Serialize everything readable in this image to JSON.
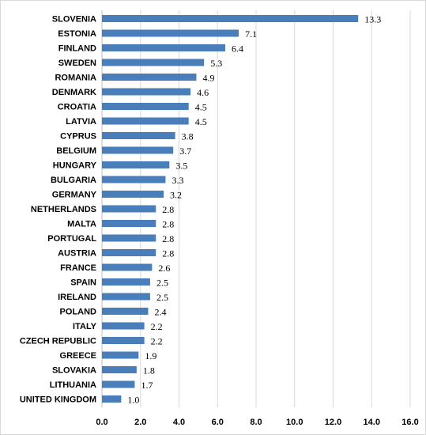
{
  "chart_data": {
    "type": "bar",
    "orientation": "horizontal",
    "title": "",
    "xlabel": "",
    "ylabel": "",
    "xlim": [
      0,
      16
    ],
    "x_ticks": [
      "0.0",
      "2.0",
      "4.0",
      "6.0",
      "8.0",
      "10.0",
      "12.0",
      "14.0",
      "16.0"
    ],
    "grid": true,
    "bar_color": "#4a7ebb",
    "categories": [
      "SLOVENIA",
      "ESTONIA",
      "FINLAND",
      "SWEDEN",
      "ROMANIA",
      "DENMARK",
      "CROATIA",
      "LATVIA",
      "CYPRUS",
      "BELGIUM",
      "HUNGARY",
      "BULGARIA",
      "GERMANY",
      "NETHERLANDS",
      "MALTA",
      "PORTUGAL",
      "AUSTRIA",
      "FRANCE",
      "SPAIN",
      "IRELAND",
      "POLAND",
      "ITALY",
      "CZECH REPUBLIC",
      "GREECE",
      "SLOVAKIA",
      "LITHUANIA",
      "UNITED KINGDOM"
    ],
    "values": [
      13.3,
      7.1,
      6.4,
      5.3,
      4.9,
      4.6,
      4.5,
      4.5,
      3.8,
      3.7,
      3.5,
      3.3,
      3.2,
      2.8,
      2.8,
      2.8,
      2.8,
      2.6,
      2.5,
      2.5,
      2.4,
      2.2,
      2.2,
      1.9,
      1.8,
      1.7,
      1.0
    ],
    "value_labels": [
      "13.3",
      "7.1",
      "6.4",
      "5.3",
      "4.9",
      "4.6",
      "4.5",
      "4.5",
      "3.8",
      "3.7",
      "3.5",
      "3.3",
      "3.2",
      "2.8",
      "2.8",
      "2.8",
      "2.8",
      "2.6",
      "2.5",
      "2.5",
      "2.4",
      "2.2",
      "2.2",
      "1.9",
      "1.8",
      "1.7",
      "1.0"
    ]
  }
}
